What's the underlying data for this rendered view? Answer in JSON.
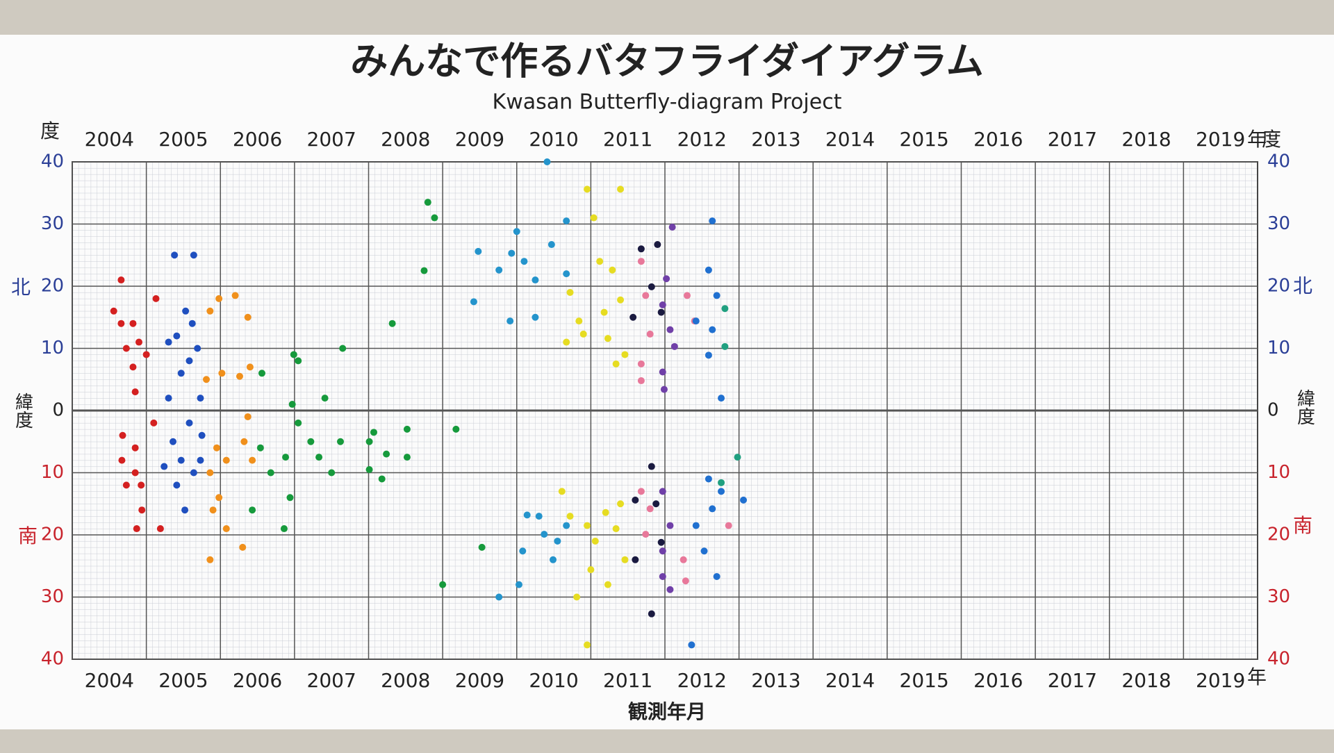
{
  "chart_data": {
    "type": "scatter",
    "title": "みんなで作るバタフライダイアグラム",
    "subtitle": "Kwasan Butterfly-diagram Project",
    "xlabel": "観測年月",
    "x_unit": "年",
    "y_unit": "度",
    "latitude_label": "緯度",
    "north_label": "北",
    "south_label": "南",
    "north_color": "#2b3f97",
    "south_color": "#c8232c",
    "xlim": [
      2004,
      2020
    ],
    "xticks": [
      2004,
      2005,
      2006,
      2007,
      2008,
      2009,
      2010,
      2011,
      2012,
      2013,
      2014,
      2015,
      2016,
      2017,
      2018,
      2019
    ],
    "ylim": [
      -40,
      40
    ],
    "yticks": [
      40,
      30,
      20,
      10,
      0,
      {
        "value": -10,
        "label": "10"
      },
      {
        "value": -20,
        "label": "20"
      },
      {
        "value": -30,
        "label": "30"
      },
      {
        "value": -40,
        "label": "40"
      }
    ],
    "grid": true,
    "series": [
      {
        "color": "#d42020",
        "x": [
          2004.66,
          2004.56,
          2004.66,
          2004.82,
          2004.9,
          2004.73,
          2004.82,
          2005.0,
          2005.13,
          2004.85,
          2004.68,
          2004.85,
          2004.67,
          2004.85,
          2004.93,
          2004.73,
          2004.94,
          2004.87,
          2005.19,
          2005.1
        ],
        "values": [
          21,
          16,
          14,
          14,
          11,
          10,
          7,
          9,
          18,
          3,
          -4,
          -6,
          -8,
          -10,
          -12,
          -12,
          -16,
          -19,
          -19,
          -2
        ]
      },
      {
        "color": "#1f4fbf",
        "x": [
          2005.38,
          2005.64,
          2005.53,
          2005.62,
          2005.41,
          2005.69,
          2005.3,
          2005.58,
          2005.47,
          2005.73,
          2005.3,
          2005.36,
          2005.58,
          2005.75,
          2005.47,
          2005.64,
          2005.41,
          2005.52,
          2005.73,
          2005.24
        ],
        "values": [
          25,
          25,
          16,
          14,
          12,
          10,
          11,
          8,
          6,
          2,
          2,
          -5,
          -2,
          -4,
          -8,
          -10,
          -12,
          -16,
          -8,
          -9
        ]
      },
      {
        "color": "#f0901c",
        "x": [
          2005.98,
          2006.2,
          2006.37,
          2005.86,
          2006.02,
          2005.81,
          2006.4,
          2006.26,
          2005.95,
          2006.08,
          2005.86,
          2005.98,
          2006.32,
          2006.43,
          2006.08,
          2005.86,
          2006.3,
          2005.9,
          2006.37
        ],
        "values": [
          18,
          18.5,
          15,
          16,
          6,
          5,
          7,
          5.5,
          -6,
          -8,
          -10,
          -14,
          -5,
          -8,
          -19,
          -24,
          -22,
          -16,
          -1
        ]
      },
      {
        "color": "#169a3c",
        "x": [
          2006.56,
          2006.99,
          2007.05,
          2007.41,
          2007.65,
          2008.32,
          2008.75,
          2008.8,
          2008.89,
          2006.97,
          2006.54,
          2006.68,
          2006.88,
          2007.05,
          2007.22,
          2007.33,
          2007.5,
          2007.62,
          2008.01,
          2008.07,
          2008.24,
          2008.52,
          2008.52,
          2008.01,
          2008.18,
          2006.43,
          2006.86,
          2006.94,
          2009.18,
          2009.0,
          2009.53
        ],
        "values": [
          6,
          9,
          8,
          2,
          10,
          14,
          22.5,
          33.5,
          31,
          1,
          -6,
          -10,
          -7.5,
          -2,
          -5,
          -7.5,
          -10,
          -5,
          -5,
          -3.5,
          -7,
          -3,
          -7.5,
          -9.5,
          -11,
          -16,
          -19,
          -14,
          -3,
          -28,
          -22
        ]
      },
      {
        "color": "#2494cc",
        "x": [
          2009.48,
          2009.42,
          2009.76,
          2009.93,
          2010.0,
          2010.1,
          2010.25,
          2009.91,
          2010.25,
          2010.47,
          2010.41,
          2010.67,
          2010.67,
          2009.76,
          2010.03,
          2010.08,
          2010.37,
          2010.49,
          2010.3,
          2010.14,
          2010.55,
          2010.67
        ],
        "values": [
          25.6,
          17.5,
          22.6,
          25.3,
          28.8,
          24,
          21,
          14.4,
          15,
          26.7,
          40,
          30.5,
          22,
          -30,
          -28,
          -22.6,
          -19.9,
          -24,
          -17,
          -16.8,
          -21,
          -18.5
        ]
      },
      {
        "color": "#e6dc22",
        "x": [
          2010.95,
          2011.4,
          2011.04,
          2011.12,
          2011.29,
          2010.72,
          2010.84,
          2011.18,
          2011.4,
          2010.67,
          2010.9,
          2011.23,
          2011.46,
          2011.34,
          2010.61,
          2010.72,
          2010.95,
          2011.06,
          2011.2,
          2011.4,
          2011.34,
          2010.81,
          2010.95,
          2011.23,
          2011.0,
          2011.46
        ],
        "values": [
          35.6,
          35.6,
          31,
          24,
          22.6,
          19,
          14.4,
          15.8,
          17.8,
          11,
          12.3,
          11.6,
          9,
          7.5,
          -13,
          -17,
          -18.5,
          -21,
          -16.4,
          -15,
          -19,
          -30,
          -37.7,
          -28,
          -25.6,
          -24
        ]
      },
      {
        "color": "#e8789a",
        "x": [
          2011.68,
          2011.74,
          2011.8,
          2011.68,
          2011.68,
          2012.3,
          2012.4,
          2011.68,
          2011.8,
          2011.74,
          2012.25,
          2012.28,
          2012.86
        ],
        "values": [
          24,
          18.5,
          12.3,
          7.5,
          4.8,
          18.5,
          14.4,
          -13,
          -15.8,
          -19.9,
          -24,
          -27.4,
          -18.5
        ]
      },
      {
        "color": "#1a1a40",
        "x": [
          2011.57,
          2011.68,
          2011.9,
          2011.82,
          2011.95,
          2011.82,
          2011.6,
          2011.88,
          2011.6,
          2011.82,
          2011.95
        ],
        "values": [
          15,
          26,
          26.7,
          19.9,
          15.8,
          -9,
          -14.4,
          -15,
          -24,
          -32.7,
          -21.2
        ]
      },
      {
        "color": "#7040a8",
        "x": [
          2012.1,
          2012.02,
          2011.97,
          2012.07,
          2012.13,
          2011.97,
          2011.99,
          2011.97,
          2012.07,
          2011.97,
          2012.07,
          2011.97
        ],
        "values": [
          29.5,
          21.2,
          17,
          13,
          10.3,
          6.2,
          3.4,
          -13,
          -18.5,
          -22.6,
          -28.8,
          -26.7
        ]
      },
      {
        "color": "#2070d0",
        "x": [
          2012.64,
          2012.59,
          2012.42,
          2012.64,
          2012.59,
          2012.76,
          2012.7,
          2012.59,
          2012.64,
          2012.42,
          2012.53,
          2012.7,
          2012.36,
          2013.06,
          2012.76
        ],
        "values": [
          30.5,
          22.6,
          14.4,
          13,
          8.9,
          2,
          18.5,
          -11,
          -15.8,
          -18.5,
          -22.6,
          -26.7,
          -37.7,
          -14.4,
          -13
        ]
      },
      {
        "color": "#20a080",
        "x": [
          2012.81,
          2012.81,
          2012.76,
          2012.98
        ],
        "values": [
          16.4,
          10.3,
          -11.6,
          -7.5
        ]
      }
    ]
  }
}
